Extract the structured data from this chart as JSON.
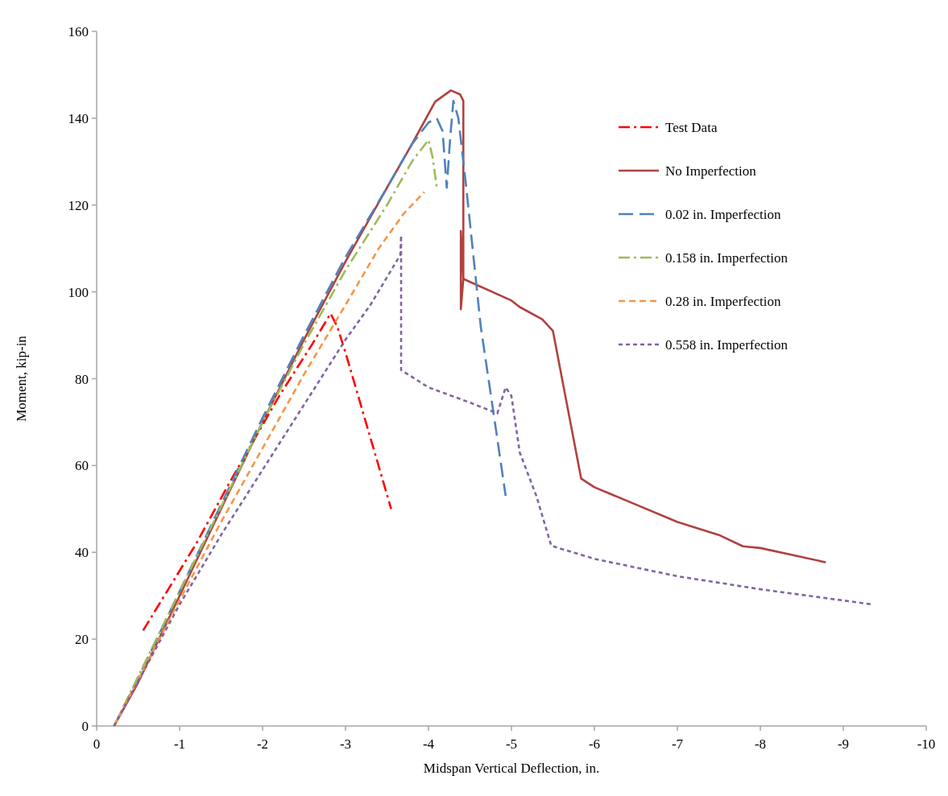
{
  "chart_data": {
    "type": "line",
    "xlabel": "Midspan Vertical Deflection, in.",
    "ylabel": "Moment, kip-in",
    "xlim": [
      0,
      -10
    ],
    "xticks": [
      0,
      -1,
      -2,
      -3,
      -4,
      -5,
      -6,
      -7,
      -8,
      -9,
      -10
    ],
    "ylim": [
      0,
      160
    ],
    "yticks": [
      0,
      20,
      40,
      60,
      80,
      100,
      120,
      140,
      160
    ],
    "grid": false,
    "legend": "right",
    "marker": "none",
    "series": [
      {
        "name": "Test Data",
        "color": "#ff0000",
        "line_style": "dashdot",
        "x": [
          -0.56,
          -1.2,
          -1.6,
          -2.2,
          -2.6,
          -2.82,
          -2.9,
          -3.0,
          -3.55
        ],
        "values": [
          22,
          42,
          56,
          76,
          88,
          95,
          92,
          86,
          50
        ]
      },
      {
        "name": "No Imperfection",
        "color": "#b0413e",
        "line_style": "solid",
        "x": [
          -0.21,
          -0.5,
          -1,
          -1.5,
          -2,
          -2.5,
          -3,
          -3.5,
          -3.8,
          -4.08,
          -4.27,
          -4.38,
          -4.42,
          -4.42,
          -4.39,
          -4.39,
          -4.42,
          -5.0,
          -5.1,
          -5.37,
          -5.5,
          -5.66,
          -5.84,
          -6.0,
          -6.5,
          -7.0,
          -7.5,
          -7.79,
          -8.0,
          -8.79
        ],
        "values": [
          0,
          10,
          30,
          50,
          70,
          89,
          107,
          124,
          134,
          143.8,
          146.4,
          145.5,
          144,
          103,
          96,
          114,
          103,
          98,
          96.5,
          93.7,
          91,
          75,
          57,
          55,
          51,
          47,
          44,
          41.4,
          41,
          37.7
        ]
      },
      {
        "name": "0.02 in. Imperfection",
        "color": "#4f81bd",
        "line_style": "longdash",
        "x": [
          -0.21,
          -0.5,
          -1,
          -1.5,
          -2,
          -2.5,
          -3,
          -3.5,
          -3.8,
          -4.0,
          -4.1,
          -4.17,
          -4.22,
          -4.26,
          -4.3,
          -4.36,
          -4.45,
          -4.63,
          -4.8,
          -4.93
        ],
        "values": [
          0,
          11,
          31,
          51,
          71,
          90,
          108,
          124,
          134,
          139,
          140,
          137,
          124,
          135,
          144,
          140,
          125,
          92,
          70,
          53
        ]
      },
      {
        "name": "0.158 in. Imperfection",
        "color": "#9bbb59",
        "line_style": "dashdot",
        "x": [
          -0.21,
          -1,
          -2,
          -2.5,
          -3,
          -3.5,
          -3.8,
          -4.0,
          -4.05,
          -4.1
        ],
        "values": [
          0,
          31,
          70,
          88,
          105,
          120,
          130,
          135,
          131,
          124
        ]
      },
      {
        "name": "0.28 in. Imperfection",
        "color": "#f79646",
        "line_style": "dashed",
        "x": [
          -0.21,
          -1,
          -1.5,
          -2,
          -2.5,
          -3,
          -3.4,
          -3.7,
          -3.95
        ],
        "values": [
          0,
          29,
          47,
          64,
          81,
          97,
          110,
          118,
          123
        ]
      },
      {
        "name": "0.558 in. Imperfection",
        "color": "#8064a2",
        "line_style": "dotted",
        "x": [
          -0.21,
          -1,
          -1.5,
          -2,
          -2.5,
          -3,
          -3.3,
          -3.66,
          -3.67,
          -3.67,
          -4.0,
          -4.5,
          -4.83,
          -4.93,
          -5.0,
          -5.1,
          -5.3,
          -5.48,
          -6,
          -7,
          -8,
          -9.35
        ],
        "values": [
          0,
          28,
          44,
          59,
          74,
          89,
          97,
          108.5,
          113,
          82,
          78,
          74.5,
          72,
          78,
          76,
          63,
          53,
          41.5,
          38.5,
          34.5,
          31.5,
          28
        ]
      }
    ]
  }
}
